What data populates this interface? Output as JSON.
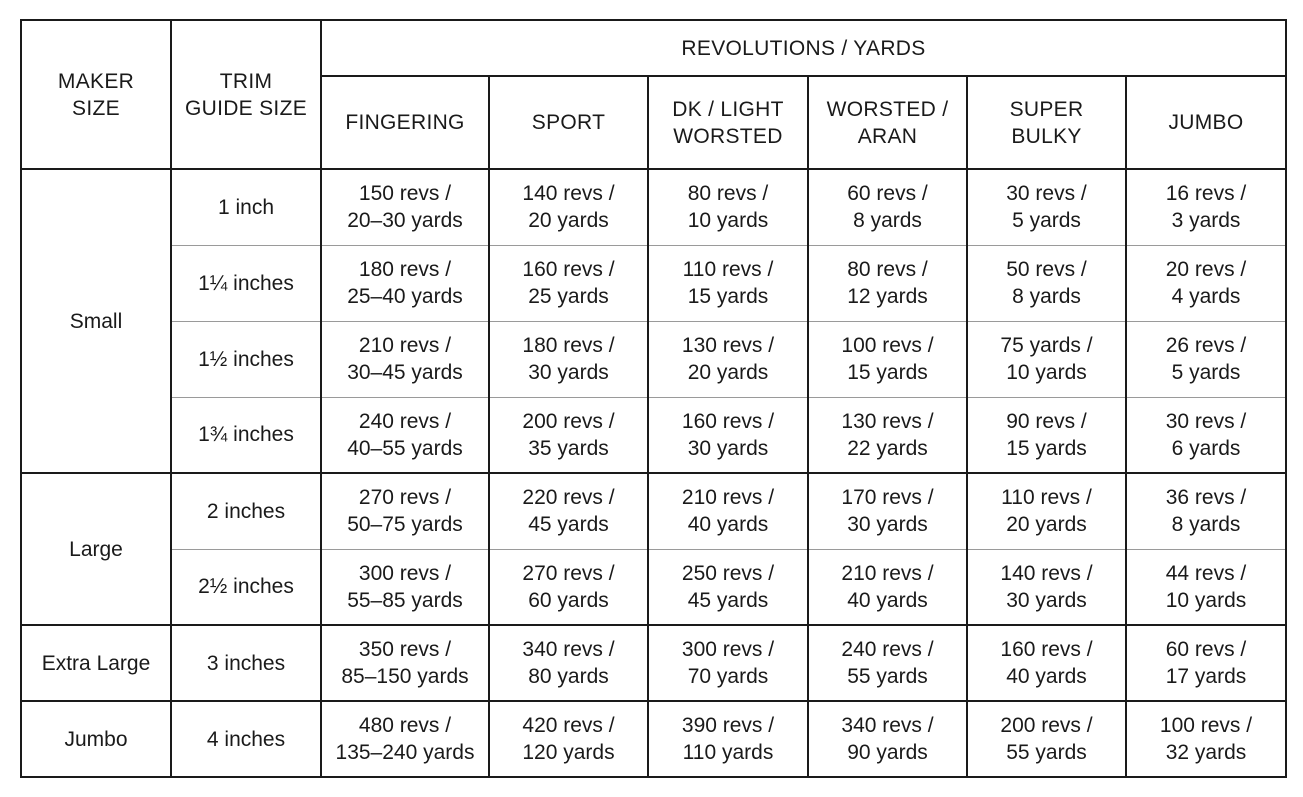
{
  "headers": {
    "maker_size": "MAKER SIZE",
    "trim_guide_size": "TRIM GUIDE SIZE",
    "revolutions_yards": "REVOLUTIONS / YARDS",
    "yarn_weights": [
      "FINGERING",
      "SPORT",
      "DK / LIGHT WORSTED",
      "WORSTED / ARAN",
      "SUPER BULKY",
      "JUMBO"
    ]
  },
  "groups": [
    {
      "maker": "Small",
      "rows": [
        {
          "trim": "1 inch",
          "values": [
            [
              "150 revs /",
              "20–30 yards"
            ],
            [
              "140 revs /",
              "20 yards"
            ],
            [
              "80 revs /",
              "10 yards"
            ],
            [
              "60 revs /",
              "8 yards"
            ],
            [
              "30 revs /",
              "5 yards"
            ],
            [
              "16 revs /",
              "3 yards"
            ]
          ]
        },
        {
          "trim": "1¼ inches",
          "values": [
            [
              "180 revs /",
              "25–40 yards"
            ],
            [
              "160 revs /",
              "25 yards"
            ],
            [
              "110 revs /",
              "15 yards"
            ],
            [
              "80 revs /",
              "12 yards"
            ],
            [
              "50 revs /",
              "8 yards"
            ],
            [
              "20 revs /",
              "4 yards"
            ]
          ]
        },
        {
          "trim": "1½ inches",
          "values": [
            [
              "210 revs /",
              "30–45 yards"
            ],
            [
              "180 revs /",
              "30 yards"
            ],
            [
              "130 revs /",
              "20 yards"
            ],
            [
              "100 revs /",
              "15 yards"
            ],
            [
              "75 yards /",
              "10 yards"
            ],
            [
              "26 revs /",
              "5 yards"
            ]
          ]
        },
        {
          "trim": "1¾ inches",
          "values": [
            [
              "240 revs /",
              "40–55 yards"
            ],
            [
              "200 revs /",
              "35 yards"
            ],
            [
              "160 revs /",
              "30 yards"
            ],
            [
              "130 revs /",
              "22 yards"
            ],
            [
              "90 revs /",
              "15 yards"
            ],
            [
              "30 revs /",
              "6 yards"
            ]
          ]
        }
      ]
    },
    {
      "maker": "Large",
      "rows": [
        {
          "trim": "2 inches",
          "values": [
            [
              "270 revs /",
              "50–75 yards"
            ],
            [
              "220 revs /",
              "45 yards"
            ],
            [
              "210 revs /",
              "40 yards"
            ],
            [
              "170 revs /",
              "30 yards"
            ],
            [
              "110 revs /",
              "20 yards"
            ],
            [
              "36 revs /",
              "8 yards"
            ]
          ]
        },
        {
          "trim": "2½ inches",
          "values": [
            [
              "300 revs /",
              "55–85 yards"
            ],
            [
              "270 revs /",
              "60 yards"
            ],
            [
              "250 revs /",
              "45 yards"
            ],
            [
              "210 revs /",
              "40 yards"
            ],
            [
              "140 revs /",
              "30 yards"
            ],
            [
              "44 revs /",
              "10 yards"
            ]
          ]
        }
      ]
    },
    {
      "maker": "Extra Large",
      "rows": [
        {
          "trim": "3 inches",
          "values": [
            [
              "350 revs /",
              "85–150 yards"
            ],
            [
              "340 revs /",
              "80 yards"
            ],
            [
              "300 revs /",
              "70 yards"
            ],
            [
              "240 revs /",
              "55 yards"
            ],
            [
              "160 revs /",
              "40 yards"
            ],
            [
              "60 revs /",
              "17 yards"
            ]
          ]
        }
      ]
    },
    {
      "maker": "Jumbo",
      "rows": [
        {
          "trim": "4 inches",
          "values": [
            [
              "480 revs /",
              "135–240 yards"
            ],
            [
              "420 revs /",
              "120 yards"
            ],
            [
              "390 revs /",
              "110 yards"
            ],
            [
              "340 revs /",
              "90 yards"
            ],
            [
              "200 revs /",
              "55 yards"
            ],
            [
              "100 revs /",
              "32 yards"
            ]
          ]
        }
      ]
    }
  ]
}
